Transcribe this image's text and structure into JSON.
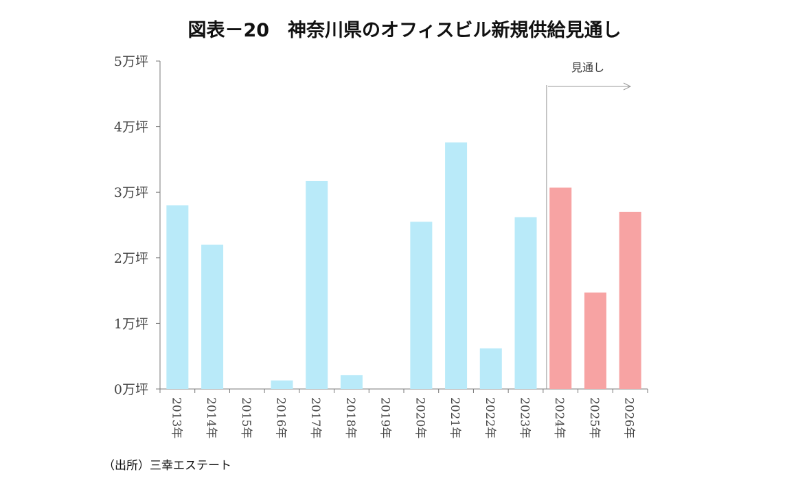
{
  "title": "図表－20　神奈川県のオフィスビル新規供給見通し",
  "source": "（出所）三幸エステート",
  "chart_data": {
    "type": "bar",
    "categories": [
      "2013年",
      "2014年",
      "2015年",
      "2016年",
      "2017年",
      "2018年",
      "2019年",
      "2020年",
      "2021年",
      "2022年",
      "2023年",
      "2024年",
      "2025年",
      "2026年"
    ],
    "values": [
      2.8,
      2.2,
      0,
      0.13,
      3.17,
      0.21,
      0,
      2.55,
      3.76,
      0.62,
      2.62,
      3.07,
      1.47,
      2.7
    ],
    "forecast_from_index": 11,
    "colors": {
      "actual": "#b9eaf9",
      "forecast": "#f7a3a3"
    },
    "ylim": [
      0,
      5
    ],
    "yticks": [
      "0万坪",
      "1万坪",
      "2万坪",
      "3万坪",
      "4万坪",
      "5万坪"
    ],
    "annotation": "見通し",
    "grid": false
  }
}
